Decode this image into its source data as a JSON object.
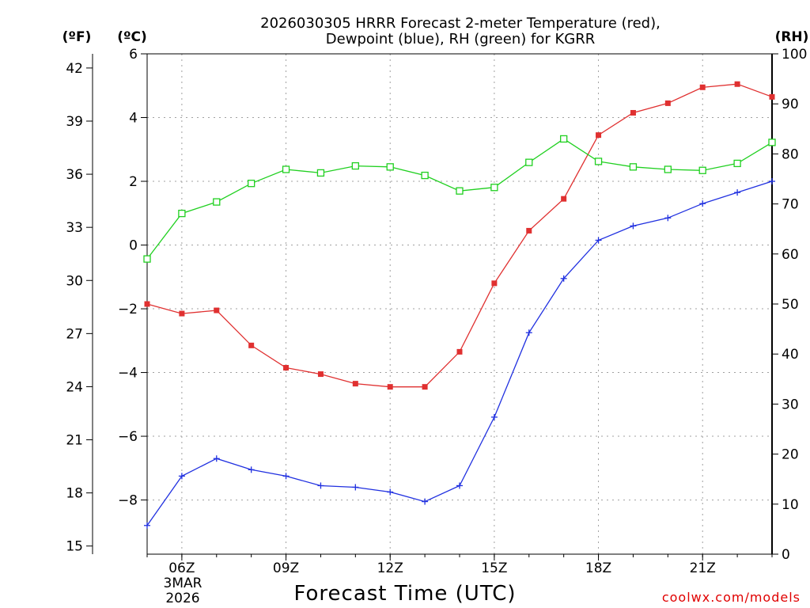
{
  "chart_data": {
    "type": "line",
    "title_line1": "2026030305 HRRR Forecast 2-meter Temperature (red),",
    "title_line2": "Dewpoint (blue), RH (green) for KGRR",
    "xlabel": "Forecast Time (UTC)",
    "credit": "coolwx.com/models",
    "unit_f": "(ºF)",
    "unit_c": "(ºC)",
    "unit_rh": "(RH)",
    "x_hours": [
      5,
      6,
      7,
      8,
      9,
      10,
      11,
      12,
      13,
      14,
      15,
      16,
      17,
      18,
      19,
      20,
      21,
      22,
      23
    ],
    "x_ticks": [
      {
        "hour": 6,
        "label": "06Z"
      },
      {
        "hour": 9,
        "label": "09Z"
      },
      {
        "hour": 12,
        "label": "12Z"
      },
      {
        "hour": 15,
        "label": "15Z"
      },
      {
        "hour": 18,
        "label": "18Z"
      },
      {
        "hour": 21,
        "label": "21Z"
      }
    ],
    "date_line1": "3MAR",
    "date_line2": "2026",
    "xlim": [
      5,
      23
    ],
    "ylim_c": [
      -9.7,
      6
    ],
    "yticks_c": [
      -8,
      -6,
      -4,
      -2,
      0,
      2,
      4,
      6
    ],
    "ylim_f": [
      14.54,
      42.8
    ],
    "yticks_f": [
      15,
      18,
      21,
      24,
      27,
      30,
      33,
      36,
      39,
      42
    ],
    "ylim_rh": [
      0,
      100
    ],
    "yticks_rh": [
      0,
      10,
      20,
      30,
      40,
      50,
      60,
      70,
      80,
      90,
      100
    ],
    "series": [
      {
        "name": "Temperature",
        "axis": "c",
        "color": "#e03030",
        "marker": "filled-square",
        "values": [
          -1.85,
          -2.15,
          -2.05,
          -3.15,
          -3.85,
          -4.05,
          -4.35,
          -4.45,
          -4.45,
          -3.35,
          -1.2,
          0.45,
          1.45,
          3.45,
          4.15,
          4.45,
          4.95,
          5.05,
          4.65
        ]
      },
      {
        "name": "Dewpoint",
        "axis": "c",
        "color": "#2030e0",
        "marker": "plus",
        "values": [
          -8.8,
          -7.25,
          -6.7,
          -7.05,
          -7.25,
          -7.55,
          -7.6,
          -7.75,
          -8.05,
          -7.55,
          -5.4,
          -2.75,
          -1.05,
          0.15,
          0.6,
          0.85,
          1.3,
          1.65,
          2.0
        ]
      },
      {
        "name": "RH",
        "axis": "rh",
        "color": "#20d020",
        "marker": "open-square",
        "values": [
          59,
          68.1,
          70.4,
          74.1,
          76.9,
          76.2,
          77.6,
          77.4,
          75.7,
          72.6,
          73.3,
          78.3,
          83.0,
          78.5,
          77.4,
          76.9,
          76.7,
          78.1,
          82.3
        ]
      }
    ]
  }
}
